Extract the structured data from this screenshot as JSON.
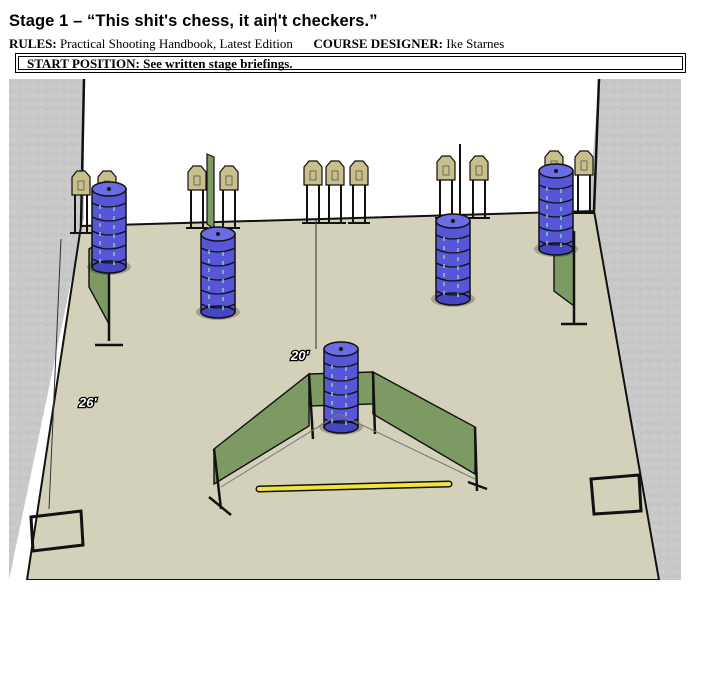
{
  "stage": {
    "title": "Stage 1 – “This shit's chess, it ain't checkers.”"
  },
  "rules": {
    "rules_label": "RULES:",
    "rules_value": "Practical Shooting Handbook, Latest Edition",
    "designer_label": "COURSE DESIGNER:",
    "designer_value": "Ike Starnes"
  },
  "start_position": {
    "text": "START POSITION: See written stage briefings."
  },
  "diagram": {
    "dimension_labels": [
      "20'",
      "26'"
    ],
    "colors": {
      "floor": "#d3d1b9",
      "walls": "#c8c8c8",
      "barrels": "#5656d6",
      "barrier_panels": "#7d9a62",
      "targets": "#c9bf8a",
      "fault_line": "#f2e53a"
    },
    "icons": [
      "target-stand-icon",
      "steel-drum-icon",
      "barrier-wall-icon",
      "shooting-box-icon",
      "fault-line-icon"
    ]
  }
}
